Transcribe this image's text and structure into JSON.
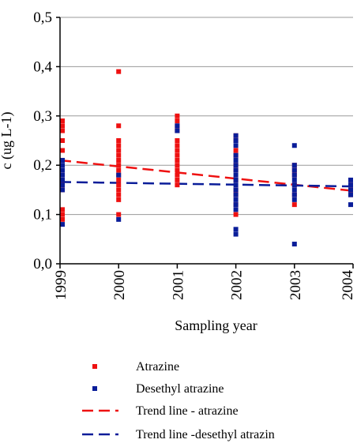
{
  "chart_data": {
    "type": "scatter",
    "xlabel": "Sampling year",
    "ylabel": "c (ug L-1)",
    "xlim": [
      1999,
      2004
    ],
    "ylim": [
      0.0,
      0.5
    ],
    "x_ticks": [
      "1999",
      "2000",
      "2001",
      "2002",
      "2003",
      "2004"
    ],
    "y_ticks": [
      "0,0",
      "0,1",
      "0,2",
      "0,3",
      "0,4",
      "0,5"
    ],
    "grid": true,
    "legend_position": "bottom",
    "colors": {
      "atrazine": "#ee1111",
      "desethyl": "#0a1d99",
      "grid": "#9a9a9a",
      "axis": "#000000"
    },
    "series": [
      {
        "name": "Atrazine",
        "kind": "points",
        "points": [
          [
            1999,
            0.29
          ],
          [
            1999,
            0.28
          ],
          [
            1999,
            0.27
          ],
          [
            1999,
            0.25
          ],
          [
            1999,
            0.23
          ],
          [
            1999,
            0.21
          ],
          [
            1999,
            0.19
          ],
          [
            1999,
            0.17
          ],
          [
            1999,
            0.16
          ],
          [
            1999,
            0.15
          ],
          [
            1999,
            0.11
          ],
          [
            1999,
            0.1
          ],
          [
            1999,
            0.09
          ],
          [
            2000,
            0.39
          ],
          [
            2000,
            0.28
          ],
          [
            2000,
            0.25
          ],
          [
            2000,
            0.24
          ],
          [
            2000,
            0.23
          ],
          [
            2000,
            0.22
          ],
          [
            2000,
            0.21
          ],
          [
            2000,
            0.2
          ],
          [
            2000,
            0.19
          ],
          [
            2000,
            0.18
          ],
          [
            2000,
            0.17
          ],
          [
            2000,
            0.16
          ],
          [
            2000,
            0.15
          ],
          [
            2000,
            0.14
          ],
          [
            2000,
            0.13
          ],
          [
            2000,
            0.1
          ],
          [
            2001,
            0.3
          ],
          [
            2001,
            0.29
          ],
          [
            2001,
            0.28
          ],
          [
            2001,
            0.27
          ],
          [
            2001,
            0.25
          ],
          [
            2001,
            0.24
          ],
          [
            2001,
            0.23
          ],
          [
            2001,
            0.22
          ],
          [
            2001,
            0.21
          ],
          [
            2001,
            0.2
          ],
          [
            2001,
            0.19
          ],
          [
            2001,
            0.18
          ],
          [
            2001,
            0.17
          ],
          [
            2001,
            0.16
          ],
          [
            2002,
            0.26
          ],
          [
            2002,
            0.25
          ],
          [
            2002,
            0.23
          ],
          [
            2002,
            0.22
          ],
          [
            2002,
            0.2
          ],
          [
            2002,
            0.19
          ],
          [
            2002,
            0.17
          ],
          [
            2002,
            0.15
          ],
          [
            2002,
            0.14
          ],
          [
            2002,
            0.12
          ],
          [
            2002,
            0.1
          ],
          [
            2003,
            0.2
          ],
          [
            2003,
            0.19
          ],
          [
            2003,
            0.18
          ],
          [
            2003,
            0.16
          ],
          [
            2003,
            0.14
          ],
          [
            2003,
            0.12
          ],
          [
            2004,
            0.16
          ],
          [
            2004,
            0.15
          ],
          [
            2004,
            0.14
          ]
        ]
      },
      {
        "name": "Desethyl atrazine",
        "kind": "points",
        "points": [
          [
            1999,
            0.21
          ],
          [
            1999,
            0.2
          ],
          [
            1999,
            0.19
          ],
          [
            1999,
            0.18
          ],
          [
            1999,
            0.17
          ],
          [
            1999,
            0.16
          ],
          [
            1999,
            0.15
          ],
          [
            1999,
            0.08
          ],
          [
            2000,
            0.18
          ],
          [
            2000,
            0.09
          ],
          [
            2001,
            0.28
          ],
          [
            2001,
            0.27
          ],
          [
            2002,
            0.26
          ],
          [
            2002,
            0.25
          ],
          [
            2002,
            0.24
          ],
          [
            2002,
            0.22
          ],
          [
            2002,
            0.21
          ],
          [
            2002,
            0.2
          ],
          [
            2002,
            0.19
          ],
          [
            2002,
            0.18
          ],
          [
            2002,
            0.17
          ],
          [
            2002,
            0.16
          ],
          [
            2002,
            0.15
          ],
          [
            2002,
            0.14
          ],
          [
            2002,
            0.13
          ],
          [
            2002,
            0.12
          ],
          [
            2002,
            0.11
          ],
          [
            2002,
            0.07
          ],
          [
            2002,
            0.06
          ],
          [
            2003,
            0.24
          ],
          [
            2003,
            0.2
          ],
          [
            2003,
            0.19
          ],
          [
            2003,
            0.18
          ],
          [
            2003,
            0.17
          ],
          [
            2003,
            0.16
          ],
          [
            2003,
            0.15
          ],
          [
            2003,
            0.14
          ],
          [
            2003,
            0.13
          ],
          [
            2003,
            0.04
          ],
          [
            2004,
            0.17
          ],
          [
            2004,
            0.16
          ],
          [
            2004,
            0.15
          ],
          [
            2004,
            0.14
          ],
          [
            2004,
            0.12
          ]
        ]
      },
      {
        "name": "Trend line - atrazine",
        "kind": "trend",
        "points": [
          [
            1999,
            0.21
          ],
          [
            2004,
            0.148
          ]
        ]
      },
      {
        "name": "Trend line -desethyl atrazin",
        "kind": "trend",
        "points": [
          [
            1999,
            0.166
          ],
          [
            2004,
            0.157
          ]
        ]
      }
    ]
  }
}
